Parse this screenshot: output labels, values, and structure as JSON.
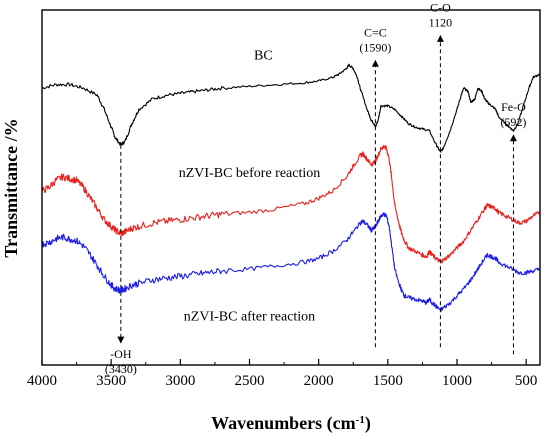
{
  "chart_data": {
    "type": "line",
    "title": "",
    "xlabel": "Wavenumbers (cm",
    "xlabel_sup": "-1",
    "xlabel_close": ")",
    "ylabel": "Transmittance /%",
    "x_reversed": true,
    "xlim": [
      4000,
      400
    ],
    "x_ticks": [
      4000,
      3500,
      3000,
      2500,
      2000,
      1500,
      1000,
      500
    ],
    "y_ticks_shown": false,
    "grid": false,
    "legend": "none",
    "series": [
      {
        "name": "BC",
        "color": "#000000",
        "x": [
          4000,
          3900,
          3800,
          3700,
          3600,
          3550,
          3500,
          3470,
          3430,
          3400,
          3350,
          3300,
          3200,
          3100,
          3000,
          2900,
          2800,
          2700,
          2500,
          2300,
          2100,
          2000,
          1900,
          1850,
          1800,
          1780,
          1750,
          1720,
          1700,
          1650,
          1620,
          1600,
          1590,
          1570,
          1550,
          1500,
          1450,
          1400,
          1350,
          1300,
          1250,
          1200,
          1150,
          1120,
          1100,
          1050,
          1000,
          970,
          950,
          920,
          900,
          870,
          850,
          820,
          800,
          780,
          750,
          720,
          700,
          650,
          620,
          592,
          560,
          520,
          480,
          450,
          400
        ],
        "y": [
          0.78,
          0.79,
          0.79,
          0.78,
          0.76,
          0.72,
          0.67,
          0.64,
          0.62,
          0.63,
          0.68,
          0.72,
          0.75,
          0.76,
          0.765,
          0.77,
          0.775,
          0.78,
          0.785,
          0.79,
          0.795,
          0.8,
          0.81,
          0.82,
          0.835,
          0.845,
          0.835,
          0.81,
          0.78,
          0.72,
          0.69,
          0.68,
          0.67,
          0.69,
          0.73,
          0.73,
          0.72,
          0.7,
          0.68,
          0.67,
          0.665,
          0.66,
          0.62,
          0.6,
          0.61,
          0.66,
          0.72,
          0.76,
          0.78,
          0.77,
          0.74,
          0.75,
          0.78,
          0.77,
          0.75,
          0.74,
          0.73,
          0.72,
          0.7,
          0.68,
          0.67,
          0.66,
          0.68,
          0.73,
          0.78,
          0.81,
          0.82
        ]
      },
      {
        "name": "nZVI-BC before reaction",
        "color": "#e8231f",
        "x": [
          4000,
          3950,
          3900,
          3850,
          3800,
          3750,
          3700,
          3650,
          3600,
          3550,
          3500,
          3470,
          3430,
          3400,
          3350,
          3300,
          3200,
          3100,
          3000,
          2900,
          2800,
          2700,
          2500,
          2300,
          2100,
          2000,
          1900,
          1800,
          1750,
          1700,
          1680,
          1650,
          1620,
          1600,
          1590,
          1570,
          1550,
          1530,
          1510,
          1490,
          1470,
          1450,
          1420,
          1400,
          1380,
          1350,
          1300,
          1250,
          1220,
          1200,
          1180,
          1150,
          1120,
          1100,
          1050,
          1000,
          950,
          900,
          850,
          800,
          780,
          750,
          720,
          700,
          650,
          600,
          550,
          500,
          450,
          400
        ],
        "y": [
          0.49,
          0.5,
          0.52,
          0.53,
          0.525,
          0.52,
          0.5,
          0.47,
          0.44,
          0.41,
          0.39,
          0.38,
          0.37,
          0.375,
          0.385,
          0.39,
          0.4,
          0.405,
          0.41,
          0.415,
          0.42,
          0.425,
          0.43,
          0.44,
          0.455,
          0.47,
          0.49,
          0.53,
          0.56,
          0.59,
          0.595,
          0.58,
          0.565,
          0.57,
          0.575,
          0.59,
          0.61,
          0.615,
          0.61,
          0.58,
          0.52,
          0.45,
          0.4,
          0.37,
          0.35,
          0.33,
          0.32,
          0.31,
          0.305,
          0.32,
          0.31,
          0.3,
          0.29,
          0.295,
          0.31,
          0.33,
          0.35,
          0.38,
          0.41,
          0.44,
          0.45,
          0.445,
          0.44,
          0.43,
          0.42,
          0.41,
          0.4,
          0.405,
          0.42,
          0.43
        ]
      },
      {
        "name": "nZVI-BC after reaction",
        "color": "#1e1ee8",
        "x": [
          4000,
          3950,
          3900,
          3850,
          3800,
          3750,
          3700,
          3650,
          3600,
          3550,
          3500,
          3470,
          3430,
          3400,
          3350,
          3300,
          3200,
          3100,
          3000,
          2900,
          2800,
          2700,
          2500,
          2300,
          2100,
          2000,
          1900,
          1800,
          1750,
          1700,
          1680,
          1650,
          1620,
          1600,
          1590,
          1570,
          1550,
          1530,
          1510,
          1490,
          1470,
          1450,
          1420,
          1400,
          1380,
          1350,
          1300,
          1250,
          1220,
          1200,
          1180,
          1150,
          1120,
          1100,
          1050,
          1000,
          950,
          900,
          850,
          800,
          780,
          750,
          720,
          700,
          650,
          600,
          550,
          500,
          450,
          400
        ],
        "y": [
          0.34,
          0.345,
          0.355,
          0.36,
          0.355,
          0.35,
          0.335,
          0.31,
          0.28,
          0.25,
          0.225,
          0.215,
          0.21,
          0.215,
          0.225,
          0.23,
          0.24,
          0.245,
          0.25,
          0.255,
          0.26,
          0.265,
          0.27,
          0.28,
          0.29,
          0.3,
          0.32,
          0.35,
          0.375,
          0.4,
          0.405,
          0.395,
          0.38,
          0.385,
          0.39,
          0.405,
          0.42,
          0.425,
          0.42,
          0.39,
          0.33,
          0.27,
          0.23,
          0.21,
          0.195,
          0.19,
          0.185,
          0.18,
          0.175,
          0.185,
          0.175,
          0.165,
          0.155,
          0.16,
          0.175,
          0.195,
          0.215,
          0.24,
          0.27,
          0.3,
          0.31,
          0.305,
          0.3,
          0.29,
          0.28,
          0.27,
          0.26,
          0.26,
          0.265,
          0.27
        ]
      }
    ],
    "markers": [
      {
        "id": "oh",
        "x": 3430,
        "y_from": 0.62,
        "y_to": 0.07,
        "dir": "down",
        "label_lines": [
          "-OH",
          "(3430)"
        ],
        "label_pos": "below"
      },
      {
        "id": "cc",
        "x": 1590,
        "y_from": 0.05,
        "y_to": 0.85,
        "dir": "up",
        "label_lines": [
          "C=C",
          "(1590)"
        ],
        "label_pos": "above"
      },
      {
        "id": "co",
        "x": 1120,
        "y_from": 0.05,
        "y_to": 0.92,
        "dir": "up",
        "label_lines": [
          "C-O",
          "1120"
        ],
        "label_pos": "above"
      },
      {
        "id": "feo",
        "x": 592,
        "y_from": 0.03,
        "y_to": 0.64,
        "dir": "up",
        "label_lines": [
          "Fe-O",
          "(592)"
        ],
        "label_pos": "above"
      }
    ],
    "curve_labels": [
      {
        "text": "BC",
        "x": 2400,
        "y": 0.86
      },
      {
        "text": "nZVI-BC before reaction",
        "x": 2500,
        "y": 0.53
      },
      {
        "text": "nZVI-BC after reaction",
        "x": 2500,
        "y": 0.125
      }
    ]
  }
}
